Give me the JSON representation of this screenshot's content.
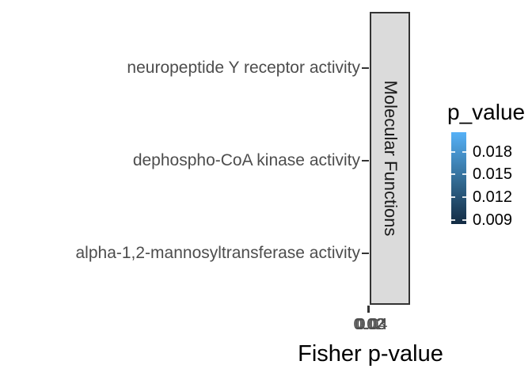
{
  "plot": {
    "y_axis": {
      "labels": [
        "neuropeptide Y receptor activity",
        "dephospho-CoA kinase activity",
        "alpha-1,2-mannosyltransferase activity"
      ]
    },
    "x_axis": {
      "tick_labels": [
        "0.02",
        "0.03",
        "0.04"
      ],
      "title": "Fisher p-value"
    },
    "facet_strip": {
      "label": "Molecular Functions",
      "fill": "#DBDBDB",
      "border": "#333333"
    },
    "legend": {
      "title": "p_value",
      "tick_labels": [
        "0.018",
        "0.015",
        "0.012",
        "0.009"
      ],
      "gradient_high": "#56B1F7",
      "gradient_mid": "#31688F",
      "gradient_low": "#132B43"
    }
  },
  "chart_data": {
    "type": "bar",
    "orientation": "horizontal",
    "categories": [
      "neuropeptide Y receptor activity",
      "dephospho-CoA kinase activity",
      "alpha-1,2-mannosyltransferase activity"
    ],
    "values": [
      null,
      null,
      null
    ],
    "title": "",
    "xlabel": "Fisher p-value",
    "ylabel": "",
    "x_ticks": [
      0.02,
      0.03,
      0.04
    ],
    "facet_label": "Molecular Functions",
    "grid": false,
    "legend": {
      "title": "p_value",
      "type": "continuous-colorbar",
      "position": "right",
      "ticks": [
        0.018,
        0.015,
        0.012,
        0.009
      ],
      "high_color": "#56B1F7",
      "low_color": "#132B43"
    },
    "note": "plot panel rendered with near-zero width; bars not visible, x tick labels overlap"
  }
}
